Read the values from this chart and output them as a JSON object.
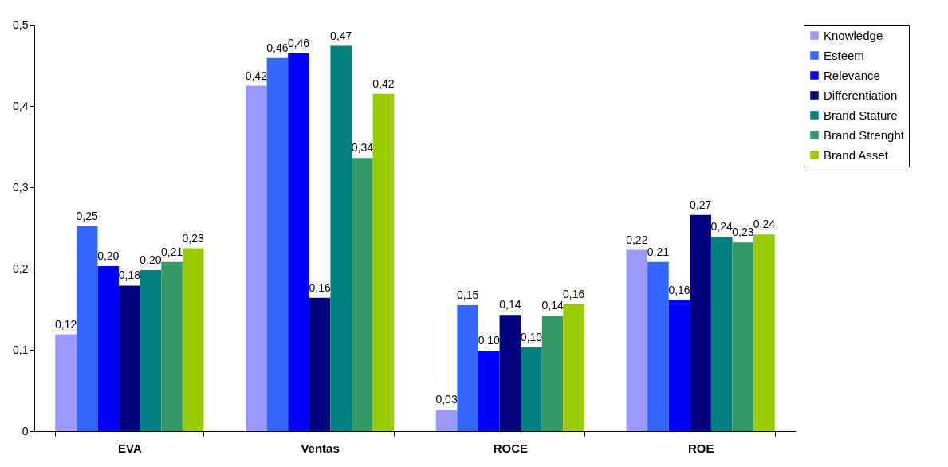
{
  "chart_data": {
    "type": "bar",
    "categories": [
      "EVA",
      "Ventas",
      "ROCE",
      "ROE"
    ],
    "series": [
      {
        "name": "Knowledge",
        "color": "#9999ff",
        "values": [
          0.119,
          0.425,
          0.026,
          0.223
        ],
        "value_labels": [
          "0,12",
          "0,42",
          "0,03",
          "0,22"
        ]
      },
      {
        "name": "Esteem",
        "color": "#3366ff",
        "values": [
          0.252,
          0.459,
          0.155,
          0.208
        ],
        "value_labels": [
          "0,25",
          "0,46",
          "0,15",
          "0,21"
        ]
      },
      {
        "name": "Relevance",
        "color": "#0000ff",
        "values": [
          0.203,
          0.465,
          0.099,
          0.161
        ],
        "value_labels": [
          "0,20",
          "0,46",
          "0,10",
          "0,16"
        ]
      },
      {
        "name": "Differentiation",
        "color": "#000080",
        "values": [
          0.179,
          0.164,
          0.143,
          0.266
        ],
        "value_labels": [
          "0,18",
          "0,16",
          "0,14",
          "0,27"
        ]
      },
      {
        "name": "Brand Stature",
        "color": "#008080",
        "values": [
          0.198,
          0.474,
          0.103,
          0.239
        ],
        "value_labels": [
          "0,20",
          "0,47",
          "0,10",
          "0,24"
        ]
      },
      {
        "name": "Brand Strenght",
        "color": "#339966",
        "values": [
          0.208,
          0.336,
          0.142,
          0.232
        ],
        "value_labels": [
          "0,21",
          "0,34",
          "0,14",
          "0,23"
        ]
      },
      {
        "name": "Brand Asset",
        "color": "#99cc00",
        "values": [
          0.225,
          0.415,
          0.156,
          0.242
        ],
        "value_labels": [
          "0,23",
          "0,42",
          "0,16",
          "0,24"
        ]
      }
    ],
    "ylim": [
      0,
      0.5
    ],
    "yticks": [
      {
        "value": 0,
        "label": "0"
      },
      {
        "value": 0.1,
        "label": "0,1"
      },
      {
        "value": 0.2,
        "label": "0,2"
      },
      {
        "value": 0.3,
        "label": "0,3"
      },
      {
        "value": 0.4,
        "label": "0,4"
      },
      {
        "value": 0.5,
        "label": "0,5"
      }
    ],
    "grid": false,
    "legend": "right"
  }
}
